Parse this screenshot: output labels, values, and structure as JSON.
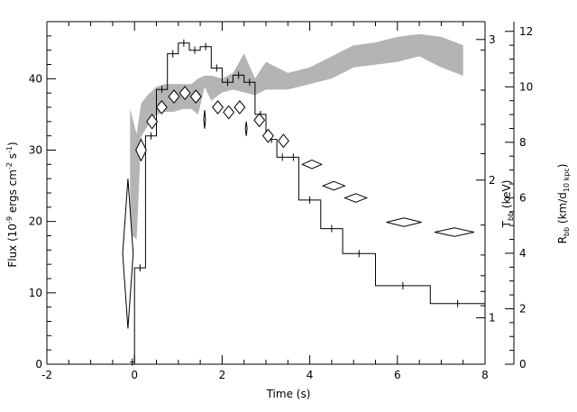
{
  "chart_data": {
    "type": "line",
    "xlabel": "Time (s)",
    "ylabel_left": [
      "Flux (10",
      "-9",
      " ergs cm",
      "-2",
      " s",
      "-1",
      ")"
    ],
    "ylabel_right_1": [
      "T",
      "bb",
      " (keV)"
    ],
    "ylabel_right_2": [
      "R",
      "bb",
      " (km/d",
      "10 kpc",
      ")"
    ],
    "xlim": [
      -2,
      8
    ],
    "ylim_flux": [
      0,
      48
    ],
    "ylim_radius": [
      0,
      12.35
    ],
    "x_ticks": [
      "-2",
      "0",
      "2",
      "4",
      "6",
      "8"
    ],
    "flux_ticks": [
      "0",
      "10",
      "20",
      "30",
      "40"
    ],
    "radius_ticks": [
      "0",
      "2",
      "4",
      "6",
      "8",
      "10",
      "12"
    ],
    "temp_ticks": [
      "1",
      "2",
      "3"
    ],
    "temp_tick_values_in_flux_units": [
      6.5,
      25.8,
      45.5
    ],
    "series": [
      {
        "kind": "flux-histogram",
        "steps": [
          {
            "x0": -0.1,
            "x1": 0.0,
            "y": 0.3
          },
          {
            "x0": 0.0,
            "x1": 0.25,
            "y": 13.5
          },
          {
            "x0": 0.25,
            "x1": 0.5,
            "y": 32.0
          },
          {
            "x0": 0.5,
            "x1": 0.75,
            "y": 38.5
          },
          {
            "x0": 0.75,
            "x1": 1.0,
            "y": 43.5
          },
          {
            "x0": 1.0,
            "x1": 1.25,
            "y": 45.0
          },
          {
            "x0": 1.25,
            "x1": 1.5,
            "y": 44.0
          },
          {
            "x0": 1.5,
            "x1": 1.75,
            "y": 44.5
          },
          {
            "x0": 1.75,
            "x1": 2.0,
            "y": 41.5
          },
          {
            "x0": 2.0,
            "x1": 2.25,
            "y": 39.5
          },
          {
            "x0": 2.25,
            "x1": 2.5,
            "y": 40.5
          },
          {
            "x0": 2.5,
            "x1": 2.75,
            "y": 39.5
          },
          {
            "x0": 2.75,
            "x1": 3.0,
            "y": 35.0
          },
          {
            "x0": 3.0,
            "x1": 3.25,
            "y": 31.5
          },
          {
            "x0": 3.25,
            "x1": 3.5,
            "y": 29.0
          },
          {
            "x0": 3.5,
            "x1": 3.75,
            "y": 29.0
          },
          {
            "x0": 3.75,
            "x1": 4.25,
            "y": 23.0
          },
          {
            "x0": 4.25,
            "x1": 4.75,
            "y": 19.0
          },
          {
            "x0": 4.75,
            "x1": 5.5,
            "y": 15.5
          },
          {
            "x0": 5.5,
            "x1": 6.75,
            "y": 11.0
          },
          {
            "x0": 6.75,
            "x1": 8.0,
            "y": 8.5
          }
        ]
      },
      {
        "kind": "temperature-markers",
        "points": [
          {
            "x": -0.15,
            "y": 15.5,
            "hw": 0.12,
            "hh": 10.5
          },
          {
            "x": 0.15,
            "y": 30.0,
            "hw": 0.12,
            "hh": 1.5
          },
          {
            "x": 0.4,
            "y": 34.0,
            "hw": 0.12,
            "hh": 1.0
          },
          {
            "x": 0.62,
            "y": 36.0,
            "hw": 0.12,
            "hh": 0.9
          },
          {
            "x": 0.9,
            "y": 37.5,
            "hw": 0.12,
            "hh": 0.9
          },
          {
            "x": 1.15,
            "y": 38.0,
            "hw": 0.12,
            "hh": 0.9
          },
          {
            "x": 1.4,
            "y": 37.5,
            "hw": 0.12,
            "hh": 0.9
          },
          {
            "x": 1.6,
            "y": 34.3,
            "hw": 0.02,
            "hh": 1.3
          },
          {
            "x": 1.9,
            "y": 36.0,
            "hw": 0.12,
            "hh": 0.9
          },
          {
            "x": 2.15,
            "y": 35.3,
            "hw": 0.12,
            "hh": 0.9
          },
          {
            "x": 2.4,
            "y": 36.0,
            "hw": 0.12,
            "hh": 0.9
          },
          {
            "x": 2.55,
            "y": 33.0,
            "hw": 0.02,
            "hh": 1.0
          },
          {
            "x": 2.85,
            "y": 34.2,
            "hw": 0.12,
            "hh": 0.9
          },
          {
            "x": 3.05,
            "y": 32.0,
            "hw": 0.12,
            "hh": 0.9
          },
          {
            "x": 3.4,
            "y": 31.3,
            "hw": 0.12,
            "hh": 0.9
          },
          {
            "x": 4.05,
            "y": 28.0,
            "hw": 0.22,
            "hh": 0.6
          },
          {
            "x": 4.55,
            "y": 25.0,
            "hw": 0.25,
            "hh": 0.6
          },
          {
            "x": 5.05,
            "y": 23.3,
            "hw": 0.25,
            "hh": 0.6
          },
          {
            "x": 6.15,
            "y": 19.9,
            "hw": 0.4,
            "hh": 0.6
          },
          {
            "x": 7.3,
            "y": 18.5,
            "hw": 0.45,
            "hh": 0.6
          }
        ]
      },
      {
        "kind": "radius-band",
        "color": "#b4b4b4",
        "x": [
          -0.1,
          0.05,
          0.15,
          0.3,
          0.5,
          0.7,
          0.9,
          1.1,
          1.3,
          1.45,
          1.6,
          1.75,
          2.0,
          2.25,
          2.5,
          2.75,
          3.0,
          3.5,
          4.0,
          4.5,
          5.0,
          5.5,
          6.0,
          6.5,
          7.0,
          7.5
        ],
        "upper": [
          9.2,
          8.3,
          9.4,
          9.7,
          10.0,
          10.1,
          10.1,
          10.1,
          10.1,
          10.3,
          10.4,
          10.4,
          10.3,
          10.5,
          11.2,
          10.3,
          10.9,
          10.5,
          10.7,
          11.1,
          11.5,
          11.6,
          11.8,
          11.9,
          11.8,
          11.5
        ],
        "lower": [
          4.7,
          4.5,
          8.2,
          8.6,
          9.0,
          9.1,
          9.1,
          9.2,
          9.2,
          9.0,
          10.0,
          9.5,
          9.8,
          9.9,
          9.8,
          9.7,
          9.9,
          9.9,
          10.1,
          10.3,
          10.7,
          10.8,
          10.9,
          11.1,
          10.7,
          10.4
        ]
      }
    ]
  }
}
